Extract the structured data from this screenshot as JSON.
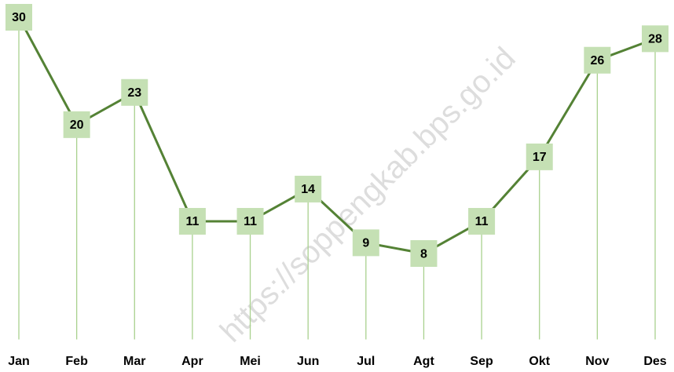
{
  "chart_data": {
    "type": "line",
    "categories": [
      "Jan",
      "Feb",
      "Mar",
      "Apr",
      "Mei",
      "Jun",
      "Jul",
      "Agt",
      "Sep",
      "Okt",
      "Nov",
      "Des"
    ],
    "series": [
      {
        "color": "#548235",
        "values": [
          30,
          20,
          23,
          11,
          11,
          14,
          9,
          8,
          11,
          17,
          26,
          28
        ]
      }
    ],
    "ylim": [
      0,
      30
    ],
    "drop_lines": true,
    "watermark": "https://soppengkab.bps.go.id"
  }
}
